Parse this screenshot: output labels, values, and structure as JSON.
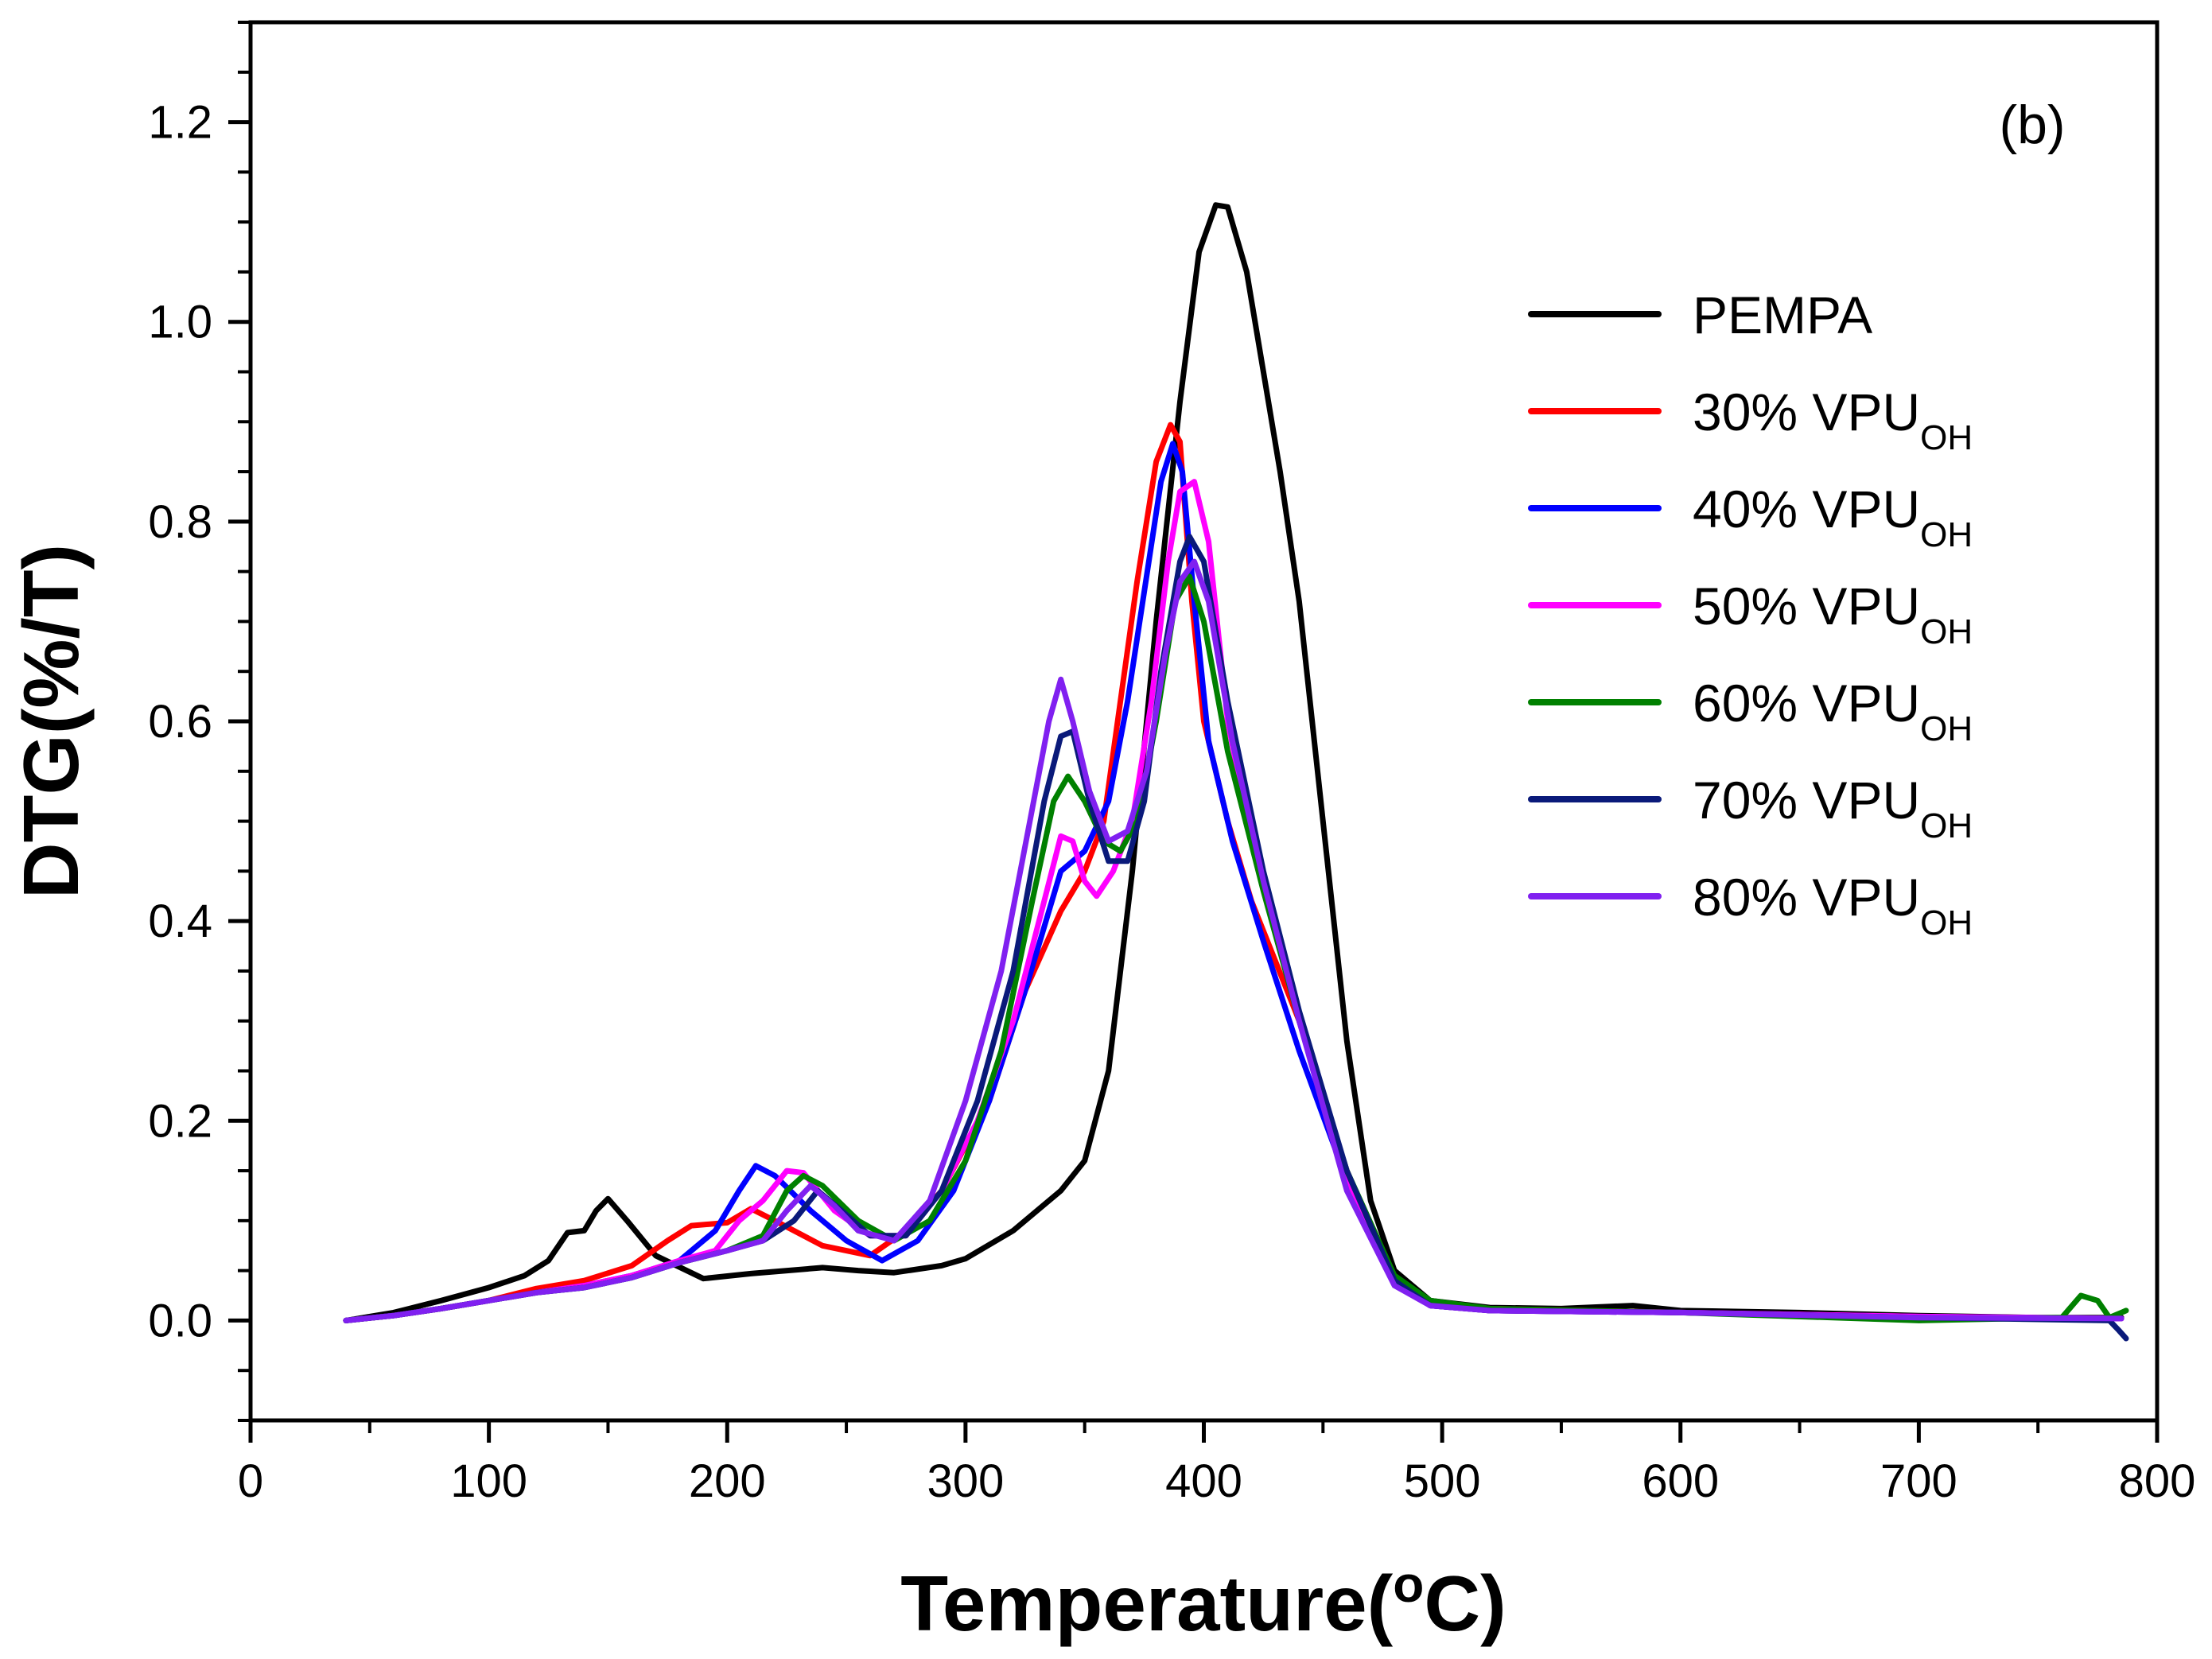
{
  "chart_data": {
    "type": "line",
    "title": "",
    "panel_label": "(b)",
    "xlabel": "Temperature",
    "xlabel_unit": "C",
    "xlabel_sup": "o",
    "ylabel": "DTG(%/T)",
    "xlim": [
      0,
      800
    ],
    "ylim": [
      -0.1,
      1.3
    ],
    "x_ticks": [
      0,
      100,
      200,
      300,
      400,
      500,
      600,
      700,
      800
    ],
    "y_ticks": [
      0.0,
      0.2,
      0.4,
      0.6,
      0.8,
      1.0,
      1.2
    ],
    "x_tick_labels": [
      "0",
      "100",
      "200",
      "300",
      "400",
      "500",
      "600",
      "700",
      "800"
    ],
    "y_tick_labels": [
      "0.0",
      "0.2",
      "0.4",
      "0.6",
      "0.8",
      "1.0",
      "1.2"
    ],
    "grid": false,
    "legend_position": "top-right",
    "series": [
      {
        "name": "PEMPA",
        "label_main": "PEMPA",
        "label_sub": "",
        "color": "#000000",
        "points": [
          [
            40,
            0.0
          ],
          [
            60,
            0.008
          ],
          [
            80,
            0.02
          ],
          [
            100,
            0.033
          ],
          [
            115,
            0.045
          ],
          [
            125,
            0.06
          ],
          [
            133,
            0.088
          ],
          [
            140,
            0.09
          ],
          [
            145,
            0.11
          ],
          [
            150,
            0.122
          ],
          [
            158,
            0.1
          ],
          [
            170,
            0.065
          ],
          [
            190,
            0.042
          ],
          [
            210,
            0.047
          ],
          [
            240,
            0.053
          ],
          [
            255,
            0.05
          ],
          [
            270,
            0.048
          ],
          [
            290,
            0.055
          ],
          [
            300,
            0.062
          ],
          [
            320,
            0.09
          ],
          [
            340,
            0.13
          ],
          [
            350,
            0.16
          ],
          [
            360,
            0.25
          ],
          [
            370,
            0.45
          ],
          [
            380,
            0.7
          ],
          [
            390,
            0.92
          ],
          [
            398,
            1.07
          ],
          [
            405,
            1.117
          ],
          [
            410,
            1.115
          ],
          [
            418,
            1.05
          ],
          [
            425,
            0.95
          ],
          [
            432,
            0.85
          ],
          [
            440,
            0.72
          ],
          [
            450,
            0.5
          ],
          [
            460,
            0.28
          ],
          [
            470,
            0.12
          ],
          [
            480,
            0.05
          ],
          [
            495,
            0.02
          ],
          [
            520,
            0.013
          ],
          [
            550,
            0.012
          ],
          [
            580,
            0.015
          ],
          [
            600,
            0.01
          ],
          [
            650,
            0.008
          ],
          [
            700,
            0.005
          ],
          [
            750,
            0.003
          ],
          [
            785,
            0.003
          ]
        ]
      },
      {
        "name": "30% VPUOH",
        "label_main": "30% VPU",
        "label_sub": "OH",
        "color": "#ff0000",
        "points": [
          [
            40,
            0.0
          ],
          [
            60,
            0.005
          ],
          [
            80,
            0.012
          ],
          [
            100,
            0.02
          ],
          [
            120,
            0.032
          ],
          [
            140,
            0.04
          ],
          [
            160,
            0.055
          ],
          [
            175,
            0.08
          ],
          [
            185,
            0.095
          ],
          [
            200,
            0.098
          ],
          [
            210,
            0.112
          ],
          [
            220,
            0.1
          ],
          [
            240,
            0.075
          ],
          [
            260,
            0.065
          ],
          [
            275,
            0.09
          ],
          [
            290,
            0.13
          ],
          [
            310,
            0.22
          ],
          [
            325,
            0.33
          ],
          [
            340,
            0.41
          ],
          [
            350,
            0.45
          ],
          [
            358,
            0.5
          ],
          [
            365,
            0.62
          ],
          [
            372,
            0.74
          ],
          [
            380,
            0.86
          ],
          [
            386,
            0.897
          ],
          [
            390,
            0.88
          ],
          [
            395,
            0.72
          ],
          [
            400,
            0.6
          ],
          [
            410,
            0.5
          ],
          [
            420,
            0.42
          ],
          [
            440,
            0.3
          ],
          [
            460,
            0.15
          ],
          [
            480,
            0.04
          ],
          [
            495,
            0.018
          ],
          [
            520,
            0.012
          ],
          [
            560,
            0.01
          ],
          [
            600,
            0.008
          ],
          [
            650,
            0.006
          ],
          [
            700,
            0.004
          ],
          [
            750,
            0.002
          ],
          [
            785,
            0.002
          ]
        ]
      },
      {
        "name": "40% VPUOH",
        "label_main": "40% VPU",
        "label_sub": "OH",
        "color": "#0000ff",
        "points": [
          [
            40,
            0.0
          ],
          [
            60,
            0.005
          ],
          [
            80,
            0.012
          ],
          [
            100,
            0.02
          ],
          [
            120,
            0.028
          ],
          [
            140,
            0.035
          ],
          [
            160,
            0.045
          ],
          [
            180,
            0.06
          ],
          [
            195,
            0.09
          ],
          [
            205,
            0.13
          ],
          [
            212,
            0.155
          ],
          [
            220,
            0.145
          ],
          [
            235,
            0.11
          ],
          [
            250,
            0.08
          ],
          [
            265,
            0.06
          ],
          [
            280,
            0.08
          ],
          [
            295,
            0.13
          ],
          [
            310,
            0.22
          ],
          [
            325,
            0.33
          ],
          [
            340,
            0.45
          ],
          [
            350,
            0.47
          ],
          [
            360,
            0.52
          ],
          [
            368,
            0.62
          ],
          [
            375,
            0.73
          ],
          [
            382,
            0.84
          ],
          [
            387,
            0.878
          ],
          [
            391,
            0.85
          ],
          [
            396,
            0.72
          ],
          [
            402,
            0.58
          ],
          [
            412,
            0.48
          ],
          [
            425,
            0.38
          ],
          [
            440,
            0.27
          ],
          [
            460,
            0.14
          ],
          [
            480,
            0.04
          ],
          [
            495,
            0.015
          ],
          [
            520,
            0.01
          ],
          [
            600,
            0.008
          ],
          [
            700,
            0.004
          ],
          [
            785,
            0.002
          ]
        ]
      },
      {
        "name": "50% VPUOH",
        "label_main": "50% VPU",
        "label_sub": "OH",
        "color": "#ff00ff",
        "points": [
          [
            40,
            0.0
          ],
          [
            60,
            0.005
          ],
          [
            80,
            0.012
          ],
          [
            100,
            0.02
          ],
          [
            120,
            0.028
          ],
          [
            140,
            0.035
          ],
          [
            160,
            0.045
          ],
          [
            180,
            0.06
          ],
          [
            195,
            0.07
          ],
          [
            205,
            0.1
          ],
          [
            215,
            0.12
          ],
          [
            225,
            0.15
          ],
          [
            232,
            0.148
          ],
          [
            245,
            0.11
          ],
          [
            260,
            0.085
          ],
          [
            275,
            0.085
          ],
          [
            290,
            0.13
          ],
          [
            305,
            0.2
          ],
          [
            320,
            0.3
          ],
          [
            333,
            0.42
          ],
          [
            340,
            0.485
          ],
          [
            345,
            0.48
          ],
          [
            350,
            0.44
          ],
          [
            355,
            0.425
          ],
          [
            362,
            0.45
          ],
          [
            370,
            0.5
          ],
          [
            378,
            0.62
          ],
          [
            385,
            0.76
          ],
          [
            390,
            0.83
          ],
          [
            396,
            0.84
          ],
          [
            402,
            0.78
          ],
          [
            410,
            0.6
          ],
          [
            420,
            0.48
          ],
          [
            440,
            0.3
          ],
          [
            460,
            0.14
          ],
          [
            480,
            0.04
          ],
          [
            495,
            0.015
          ],
          [
            520,
            0.01
          ],
          [
            600,
            0.008
          ],
          [
            700,
            0.004
          ],
          [
            785,
            0.002
          ]
        ]
      },
      {
        "name": "60% VPUOH",
        "label_main": "60% VPU",
        "label_sub": "OH",
        "color": "#008000",
        "points": [
          [
            40,
            0.0
          ],
          [
            60,
            0.005
          ],
          [
            80,
            0.012
          ],
          [
            100,
            0.02
          ],
          [
            120,
            0.028
          ],
          [
            140,
            0.033
          ],
          [
            160,
            0.043
          ],
          [
            180,
            0.058
          ],
          [
            200,
            0.07
          ],
          [
            215,
            0.085
          ],
          [
            225,
            0.13
          ],
          [
            232,
            0.145
          ],
          [
            240,
            0.135
          ],
          [
            255,
            0.1
          ],
          [
            270,
            0.08
          ],
          [
            285,
            0.1
          ],
          [
            300,
            0.16
          ],
          [
            315,
            0.27
          ],
          [
            328,
            0.42
          ],
          [
            337,
            0.52
          ],
          [
            343,
            0.545
          ],
          [
            350,
            0.52
          ],
          [
            358,
            0.48
          ],
          [
            365,
            0.47
          ],
          [
            372,
            0.5
          ],
          [
            380,
            0.6
          ],
          [
            388,
            0.72
          ],
          [
            394,
            0.745
          ],
          [
            400,
            0.7
          ],
          [
            410,
            0.57
          ],
          [
            425,
            0.43
          ],
          [
            440,
            0.3
          ],
          [
            460,
            0.15
          ],
          [
            480,
            0.045
          ],
          [
            495,
            0.02
          ],
          [
            520,
            0.012
          ],
          [
            600,
            0.008
          ],
          [
            700,
            0.0
          ],
          [
            760,
            0.003
          ],
          [
            768,
            0.025
          ],
          [
            775,
            0.02
          ],
          [
            780,
            0.003
          ],
          [
            787,
            0.01
          ]
        ]
      },
      {
        "name": "70% VPUOH",
        "label_main": "70% VPU",
        "label_sub": "OH",
        "color": "#0a1a7a",
        "points": [
          [
            40,
            0.0
          ],
          [
            60,
            0.005
          ],
          [
            80,
            0.012
          ],
          [
            100,
            0.02
          ],
          [
            120,
            0.028
          ],
          [
            140,
            0.033
          ],
          [
            160,
            0.043
          ],
          [
            180,
            0.058
          ],
          [
            200,
            0.07
          ],
          [
            215,
            0.08
          ],
          [
            228,
            0.1
          ],
          [
            238,
            0.13
          ],
          [
            248,
            0.11
          ],
          [
            260,
            0.085
          ],
          [
            275,
            0.085
          ],
          [
            290,
            0.13
          ],
          [
            305,
            0.22
          ],
          [
            320,
            0.35
          ],
          [
            333,
            0.52
          ],
          [
            340,
            0.585
          ],
          [
            345,
            0.59
          ],
          [
            352,
            0.52
          ],
          [
            360,
            0.46
          ],
          [
            368,
            0.46
          ],
          [
            375,
            0.52
          ],
          [
            382,
            0.65
          ],
          [
            390,
            0.76
          ],
          [
            394,
            0.785
          ],
          [
            400,
            0.76
          ],
          [
            410,
            0.62
          ],
          [
            425,
            0.45
          ],
          [
            440,
            0.31
          ],
          [
            460,
            0.15
          ],
          [
            480,
            0.04
          ],
          [
            495,
            0.015
          ],
          [
            520,
            0.01
          ],
          [
            600,
            0.008
          ],
          [
            700,
            0.003
          ],
          [
            780,
            0.0
          ],
          [
            784,
            -0.01
          ],
          [
            787,
            -0.018
          ]
        ]
      },
      {
        "name": "80% VPUOH",
        "label_main": "80% VPU",
        "label_sub": "OH",
        "color": "#8020f0",
        "points": [
          [
            40,
            0.0
          ],
          [
            60,
            0.005
          ],
          [
            80,
            0.012
          ],
          [
            100,
            0.02
          ],
          [
            120,
            0.028
          ],
          [
            140,
            0.033
          ],
          [
            160,
            0.043
          ],
          [
            180,
            0.058
          ],
          [
            200,
            0.07
          ],
          [
            215,
            0.08
          ],
          [
            225,
            0.11
          ],
          [
            235,
            0.135
          ],
          [
            245,
            0.115
          ],
          [
            255,
            0.09
          ],
          [
            270,
            0.08
          ],
          [
            285,
            0.12
          ],
          [
            300,
            0.22
          ],
          [
            315,
            0.35
          ],
          [
            327,
            0.5
          ],
          [
            335,
            0.6
          ],
          [
            340,
            0.642
          ],
          [
            345,
            0.6
          ],
          [
            352,
            0.53
          ],
          [
            360,
            0.48
          ],
          [
            368,
            0.49
          ],
          [
            376,
            0.55
          ],
          [
            384,
            0.67
          ],
          [
            390,
            0.74
          ],
          [
            396,
            0.76
          ],
          [
            402,
            0.72
          ],
          [
            412,
            0.58
          ],
          [
            425,
            0.44
          ],
          [
            440,
            0.3
          ],
          [
            460,
            0.13
          ],
          [
            480,
            0.035
          ],
          [
            495,
            0.015
          ],
          [
            520,
            0.01
          ],
          [
            600,
            0.008
          ],
          [
            700,
            0.003
          ],
          [
            785,
            0.002
          ]
        ]
      }
    ]
  }
}
